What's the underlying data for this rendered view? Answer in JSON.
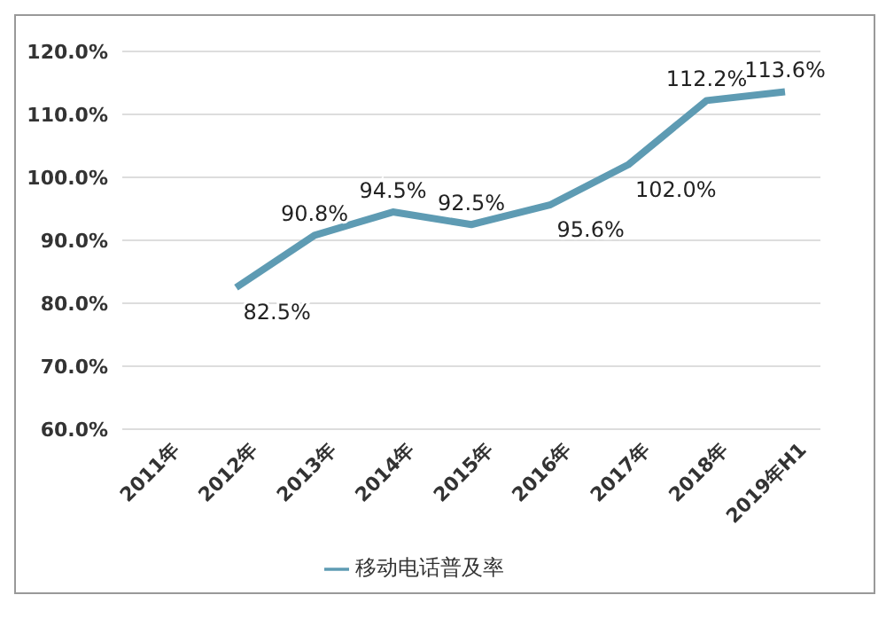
{
  "chart_data": {
    "type": "line",
    "categories": [
      "2011年",
      "2012年",
      "2013年",
      "2014年",
      "2015年",
      "2016年",
      "2017年",
      "2018年",
      "2019年H1"
    ],
    "series": [
      {
        "name": "移动电话普及率",
        "color": "#5e9bb3",
        "values": [
          null,
          82.5,
          90.8,
          94.5,
          92.5,
          95.6,
          102.0,
          112.2,
          113.6
        ],
        "value_labels": [
          null,
          "82.5%",
          "90.8%",
          "94.5%",
          "92.5%",
          "95.6%",
          "102.0%",
          "112.2%",
          "113.6%"
        ]
      }
    ],
    "ylim": [
      60,
      120
    ],
    "yticks": [
      {
        "value": 60,
        "label": "60.0%"
      },
      {
        "value": 70,
        "label": "70.0%"
      },
      {
        "value": 80,
        "label": "80.0%"
      },
      {
        "value": 90,
        "label": "90.0%"
      },
      {
        "value": 100,
        "label": "100.0%"
      },
      {
        "value": 110,
        "label": "110.0%"
      },
      {
        "value": 120,
        "label": "120.0%"
      }
    ],
    "grid": "y",
    "legend": "bottom",
    "marker": "none",
    "line_style": "solid"
  }
}
